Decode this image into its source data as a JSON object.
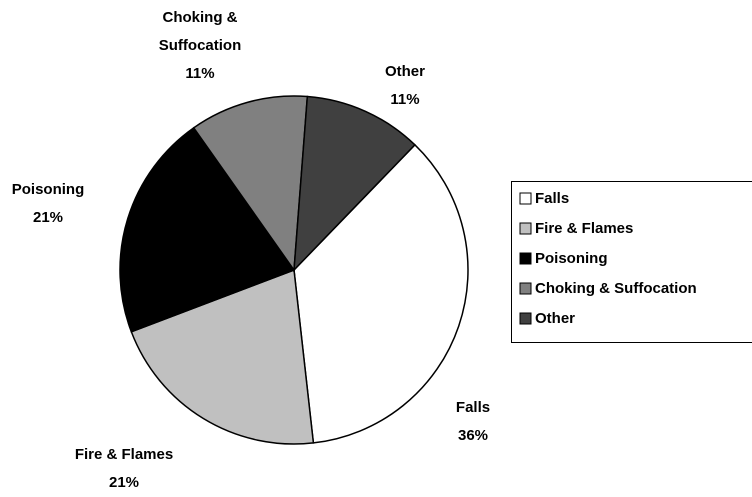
{
  "chart_data": {
    "type": "pie",
    "categories": [
      "Falls",
      "Fire & Flames",
      "Poisoning",
      "Choking & Suffocation",
      "Other"
    ],
    "values": [
      36,
      21,
      21,
      11,
      11
    ],
    "value_labels": [
      "36%",
      "21%",
      "21%",
      "11%",
      "11%"
    ],
    "colors": [
      "#ffffff",
      "#c0c0c0",
      "#000000",
      "#808080",
      "#404040"
    ],
    "legend": "right"
  }
}
